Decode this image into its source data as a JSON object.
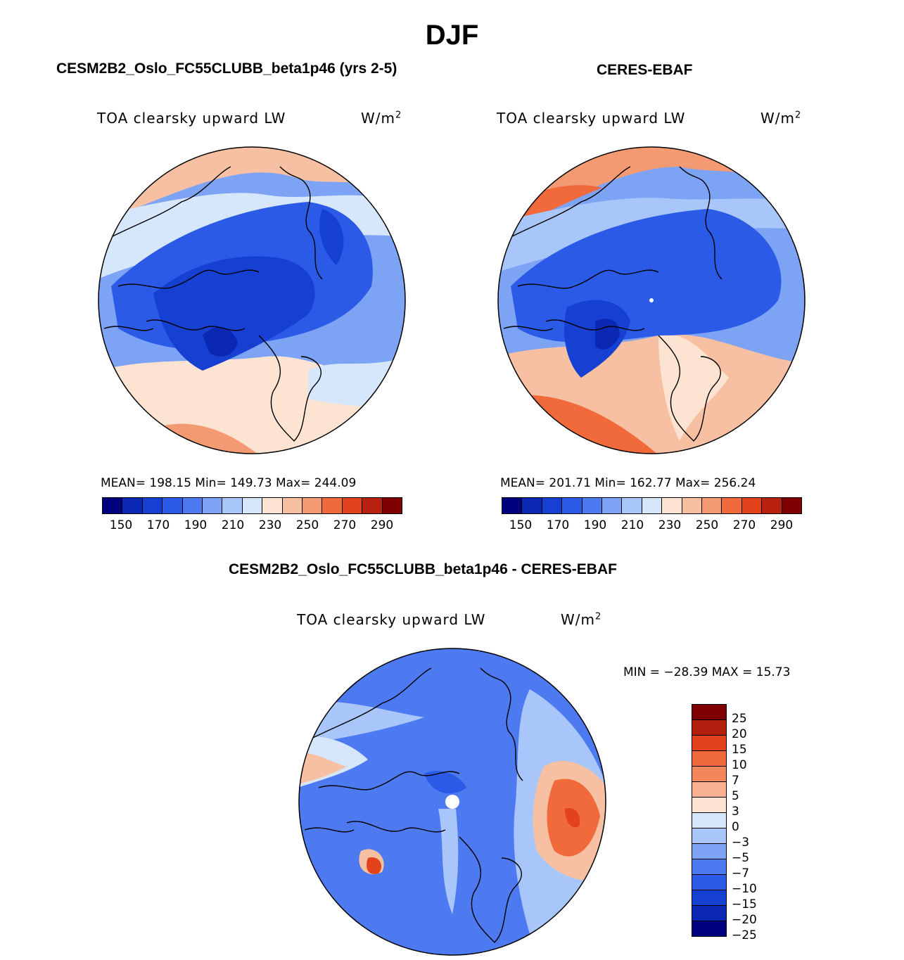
{
  "title": "DJF",
  "panels": {
    "model": {
      "title": "CESM2B2_Oslo_FC55CLUBB_beta1p46 (yrs 2-5)",
      "variable": "TOA clearsky upward LW",
      "units": "W/m",
      "units_sup": "2",
      "stats": "MEAN= 198.15   Min= 149.73   Max= 244.09",
      "colorbar_ticks": [
        "150",
        "170",
        "190",
        "210",
        "230",
        "250",
        "270",
        "290"
      ]
    },
    "obs": {
      "title": "CERES-EBAF",
      "variable": "TOA clearsky upward LW",
      "units": "W/m",
      "units_sup": "2",
      "stats": "MEAN= 201.71   Min= 162.77   Max= 256.24",
      "colorbar_ticks": [
        "150",
        "170",
        "190",
        "210",
        "230",
        "250",
        "270",
        "290"
      ]
    },
    "diff": {
      "title": "CESM2B2_Oslo_FC55CLUBB_beta1p46 - CERES-EBAF",
      "variable": "TOA clearsky upward LW",
      "units": "W/m",
      "units_sup": "2",
      "stats": "MIN = −28.39 MAX =   15.73",
      "colorbar_labels": [
        "25",
        "20",
        "15",
        "10",
        "7",
        "5",
        "3",
        "0",
        "−3",
        "−5",
        "−7",
        "−10",
        "−15",
        "−20",
        "−25"
      ]
    }
  },
  "colors": {
    "abs_scale": [
      "#00007f",
      "#0a28b4",
      "#1540d2",
      "#2a5ae6",
      "#4d7af0",
      "#7da3f5",
      "#a9c6fa",
      "#d6e6fb",
      "#fde4d2",
      "#f7c0a2",
      "#f49a72",
      "#f06a3c",
      "#e2431c",
      "#b8200f",
      "#7f0000"
    ],
    "diff_scale": [
      "#7f0000",
      "#b3200f",
      "#e2431c",
      "#f06a3c",
      "#f4875a",
      "#f7b090",
      "#fde4d2",
      "#d6e6fb",
      "#a9c6fa",
      "#7da3f5",
      "#4d7af0",
      "#2a5ae6",
      "#1540d2",
      "#0a28b4",
      "#00007f"
    ]
  }
}
